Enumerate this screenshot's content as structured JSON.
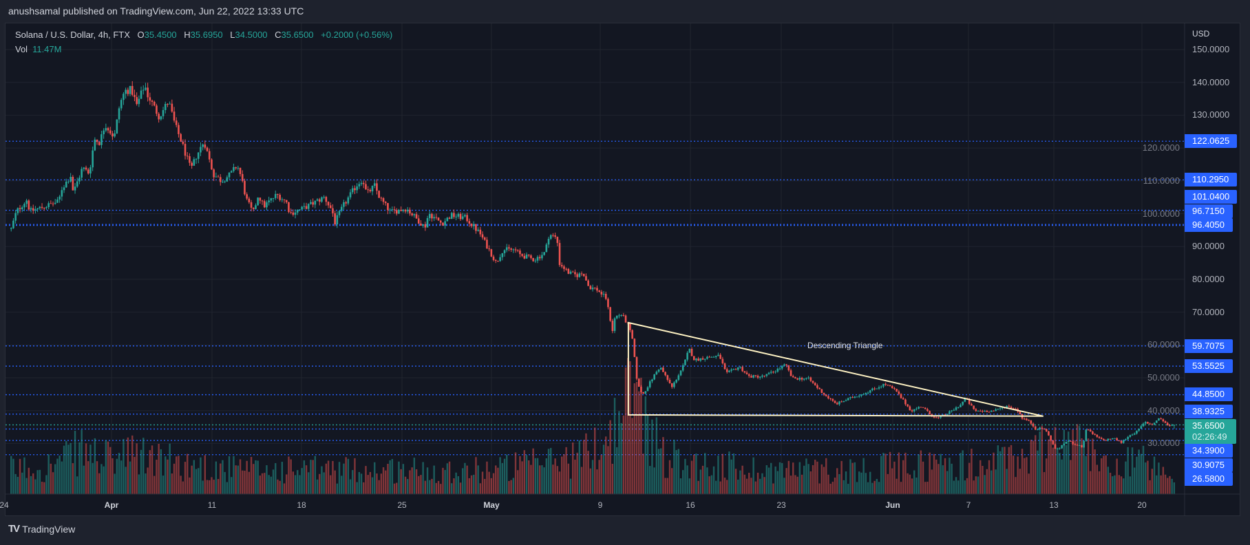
{
  "header": {
    "published": "anushsamal published on TradingView.com, Jun 22, 2022 13:33 UTC"
  },
  "legend": {
    "symbol": "Solana / U.S. Dollar, 4h, FTX",
    "o_label": "O",
    "o": "35.4500",
    "h_label": "H",
    "h": "35.6950",
    "l_label": "L",
    "l": "34.5000",
    "c_label": "C",
    "c": "35.6500",
    "change": "+0.2000 (+0.56%)",
    "vol_label": "Vol",
    "vol": "11.47M"
  },
  "footer": {
    "brand": "TradingView",
    "brand_mark": "17"
  },
  "colors": {
    "up": "#26a69a",
    "down": "#ef5350",
    "level": "#2962ff",
    "pattern": "#fff3c4",
    "background": "#131722"
  },
  "chart_data": {
    "type": "candlestick",
    "title": "Solana / U.S. Dollar, 4h, FTX",
    "ylabel": "USD",
    "ylim": [
      20,
      150
    ],
    "grid": true,
    "time_unit": "days since Mar 24, 2022",
    "x_ticks": [
      "24",
      "Apr",
      "11",
      "18",
      "25",
      "May",
      "9",
      "16",
      "23",
      "Jun",
      "7",
      "13",
      "20"
    ],
    "y_ticks": [
      "150.0000",
      "140.0000",
      "130.0000",
      "120.0000",
      "110.0000",
      "100.0000",
      "90.0000",
      "80.0000",
      "70.0000",
      "60.0000",
      "50.0000",
      "40.0000",
      "30.0000"
    ],
    "last_candle": {
      "open": 35.45,
      "high": 35.695,
      "low": 34.5,
      "close": 35.65,
      "volume_m": 11.47
    },
    "current_price": "35.6500",
    "countdown": "02:26:49",
    "levels": [
      "122.0625",
      "110.2950",
      "101.0400",
      "96.7150",
      "96.4050",
      "59.7075",
      "53.5525",
      "44.8500",
      "38.9325",
      "34.3900",
      "30.9075",
      "26.5800"
    ],
    "price_path": [
      [
        2.7,
        95.3
      ],
      [
        3.1,
        100.7
      ],
      [
        3.9,
        104.3
      ],
      [
        4.1,
        100.7
      ],
      [
        4.8,
        101.6
      ],
      [
        6.3,
        103.7
      ],
      [
        6.5,
        107.4
      ],
      [
        7.2,
        111.6
      ],
      [
        7.4,
        106.4
      ],
      [
        8.1,
        114
      ],
      [
        8.6,
        112.3
      ],
      [
        9.0,
        122.7
      ],
      [
        9.4,
        121.7
      ],
      [
        9.8,
        127.4
      ],
      [
        10.5,
        123.2
      ],
      [
        10.9,
        133
      ],
      [
        11.3,
        137.4
      ],
      [
        11.8,
        137.8
      ],
      [
        12.2,
        133
      ],
      [
        12.8,
        139.3
      ],
      [
        13.0,
        136.4
      ],
      [
        13.9,
        129.5
      ],
      [
        14.6,
        134.3
      ],
      [
        15.1,
        127
      ],
      [
        15.6,
        121.7
      ],
      [
        16.3,
        113.3
      ],
      [
        16.7,
        117.5
      ],
      [
        17.3,
        122.1
      ],
      [
        18.0,
        112
      ],
      [
        18.6,
        110
      ],
      [
        19.3,
        112
      ],
      [
        19.8,
        114.8
      ],
      [
        20.1,
        111.2
      ],
      [
        20.5,
        104.3
      ],
      [
        21.0,
        100.1
      ],
      [
        21.4,
        105.8
      ],
      [
        21.8,
        102.2
      ],
      [
        22.8,
        105.8
      ],
      [
        23.5,
        103.7
      ],
      [
        23.8,
        100.1
      ],
      [
        24.8,
        101.6
      ],
      [
        26.4,
        105
      ],
      [
        27.0,
        100.7
      ],
      [
        27.2,
        97.3
      ],
      [
        27.8,
        102.2
      ],
      [
        28.8,
        108.5
      ],
      [
        29.3,
        110.6
      ],
      [
        29.6,
        106
      ],
      [
        30.2,
        108.5
      ],
      [
        30.6,
        104.7
      ],
      [
        31.4,
        100.5
      ],
      [
        32.6,
        101.6
      ],
      [
        34.0,
        95.9
      ],
      [
        34.3,
        100.1
      ],
      [
        35.3,
        97
      ],
      [
        36.0,
        99.5
      ],
      [
        37.1,
        98.7
      ],
      [
        38.2,
        93.8
      ],
      [
        39.4,
        85
      ],
      [
        39.9,
        89
      ],
      [
        40.8,
        89
      ],
      [
        41.2,
        87.5
      ],
      [
        42.3,
        86
      ],
      [
        43.1,
        88.2
      ],
      [
        43.4,
        93.8
      ],
      [
        44.0,
        92.4
      ],
      [
        44.2,
        84.8
      ],
      [
        44.9,
        81.9
      ],
      [
        45.5,
        81.2
      ],
      [
        46.0,
        81.9
      ],
      [
        46.4,
        77.7
      ],
      [
        47.0,
        77
      ],
      [
        47.7,
        74.3
      ],
      [
        48.2,
        64.5
      ],
      [
        48.4,
        68.7
      ],
      [
        48.9,
        69.3
      ],
      [
        49.4,
        65.9
      ],
      [
        49.7,
        61.7
      ],
      [
        50.1,
        47.7
      ],
      [
        50.5,
        44.9
      ],
      [
        51.3,
        50.4
      ],
      [
        51.8,
        53.4
      ],
      [
        52.3,
        49.8
      ],
      [
        52.7,
        47.1
      ],
      [
        53.6,
        54
      ],
      [
        54.0,
        58.8
      ],
      [
        54.4,
        55.4
      ],
      [
        55.2,
        56.1
      ],
      [
        56.3,
        56.7
      ],
      [
        56.8,
        51.2
      ],
      [
        57.8,
        53.4
      ],
      [
        58.5,
        50.4
      ],
      [
        59.6,
        50.4
      ],
      [
        60.4,
        51.9
      ],
      [
        61.3,
        54
      ],
      [
        61.8,
        49.8
      ],
      [
        63.0,
        49.8
      ],
      [
        64.2,
        45
      ],
      [
        65.1,
        42
      ],
      [
        66.4,
        44.1
      ],
      [
        67.4,
        45.6
      ],
      [
        68.2,
        47
      ],
      [
        68.8,
        48.1
      ],
      [
        69.6,
        46.2
      ],
      [
        70.4,
        42
      ],
      [
        70.8,
        39.9
      ],
      [
        71.6,
        41.4
      ],
      [
        72.2,
        38.9
      ],
      [
        72.8,
        37.6
      ],
      [
        73.8,
        39.7
      ],
      [
        74.6,
        42
      ],
      [
        74.9,
        43.9
      ],
      [
        75.6,
        39.9
      ],
      [
        76.4,
        39.9
      ],
      [
        77.1,
        39.9
      ],
      [
        78.0,
        41.4
      ],
      [
        78.8,
        40.4
      ],
      [
        79.2,
        37.8
      ],
      [
        79.8,
        36.5
      ],
      [
        80.2,
        34.5
      ],
      [
        80.9,
        34.5
      ],
      [
        81.4,
        30.9
      ],
      [
        81.7,
        28.2
      ],
      [
        82.1,
        28.8
      ],
      [
        82.6,
        30.9
      ],
      [
        83.1,
        29.9
      ],
      [
        83.8,
        28.8
      ],
      [
        84.0,
        34.5
      ],
      [
        84.7,
        32.4
      ],
      [
        85.3,
        30.9
      ],
      [
        86.1,
        31.6
      ],
      [
        86.7,
        30.3
      ],
      [
        87.3,
        32.4
      ],
      [
        87.9,
        33.7
      ],
      [
        88.5,
        36.5
      ],
      [
        89.0,
        35.7
      ],
      [
        89.6,
        37.8
      ],
      [
        90.3,
        35.2
      ],
      [
        90.7,
        35.65
      ]
    ],
    "volume_path_m": [
      [
        2.7,
        25
      ],
      [
        6,
        30
      ],
      [
        8,
        45
      ],
      [
        10,
        35
      ],
      [
        12,
        40
      ],
      [
        16,
        30
      ],
      [
        20,
        25
      ],
      [
        30,
        25
      ],
      [
        38,
        25
      ],
      [
        42,
        30
      ],
      [
        46,
        40
      ],
      [
        48,
        60
      ],
      [
        49.5,
        100
      ],
      [
        50,
        115
      ],
      [
        50.6,
        80
      ],
      [
        52,
        40
      ],
      [
        55,
        30
      ],
      [
        60,
        25
      ],
      [
        66,
        25
      ],
      [
        72,
        30
      ],
      [
        76,
        30
      ],
      [
        80,
        40
      ],
      [
        81.5,
        60
      ],
      [
        83,
        55
      ],
      [
        85,
        35
      ],
      [
        88,
        35
      ],
      [
        90.7,
        11.47
      ]
    ],
    "annotations": [
      {
        "type": "descending-triangle",
        "label": "Descending Triangle",
        "points": [
          [
            49.4,
            66.8
          ],
          [
            80.8,
            38.3
          ],
          [
            49.4,
            38.7
          ]
        ],
        "label_at": [
          65.7,
          59.6
        ]
      }
    ]
  }
}
